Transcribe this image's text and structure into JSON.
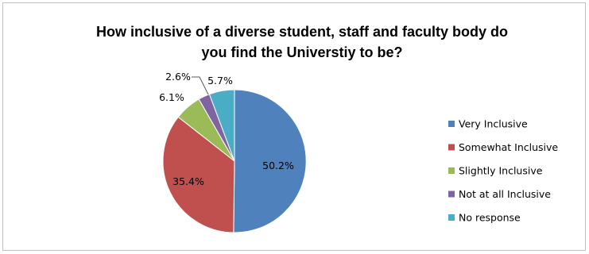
{
  "chart_data": {
    "type": "pie",
    "title": {
      "line1": "How inclusive of a diverse student, staff and faculty body do",
      "line2": "you find the Universtiy to be?"
    },
    "categories": [
      "Very Inclusive",
      "Somewhat Inclusive",
      "Slightly Inclusive",
      "Not at all Inclusive",
      "No response"
    ],
    "values": [
      50.2,
      35.4,
      6.1,
      2.6,
      5.7
    ],
    "labels": [
      "50.2%",
      "35.4%",
      "6.1%",
      "2.6%",
      "5.7%"
    ],
    "colors": [
      "#4f81bd",
      "#c0504d",
      "#9bbb59",
      "#8064a2",
      "#4bacc6"
    ],
    "legend_position": "right",
    "start_angle": "top",
    "direction": "clockwise"
  }
}
